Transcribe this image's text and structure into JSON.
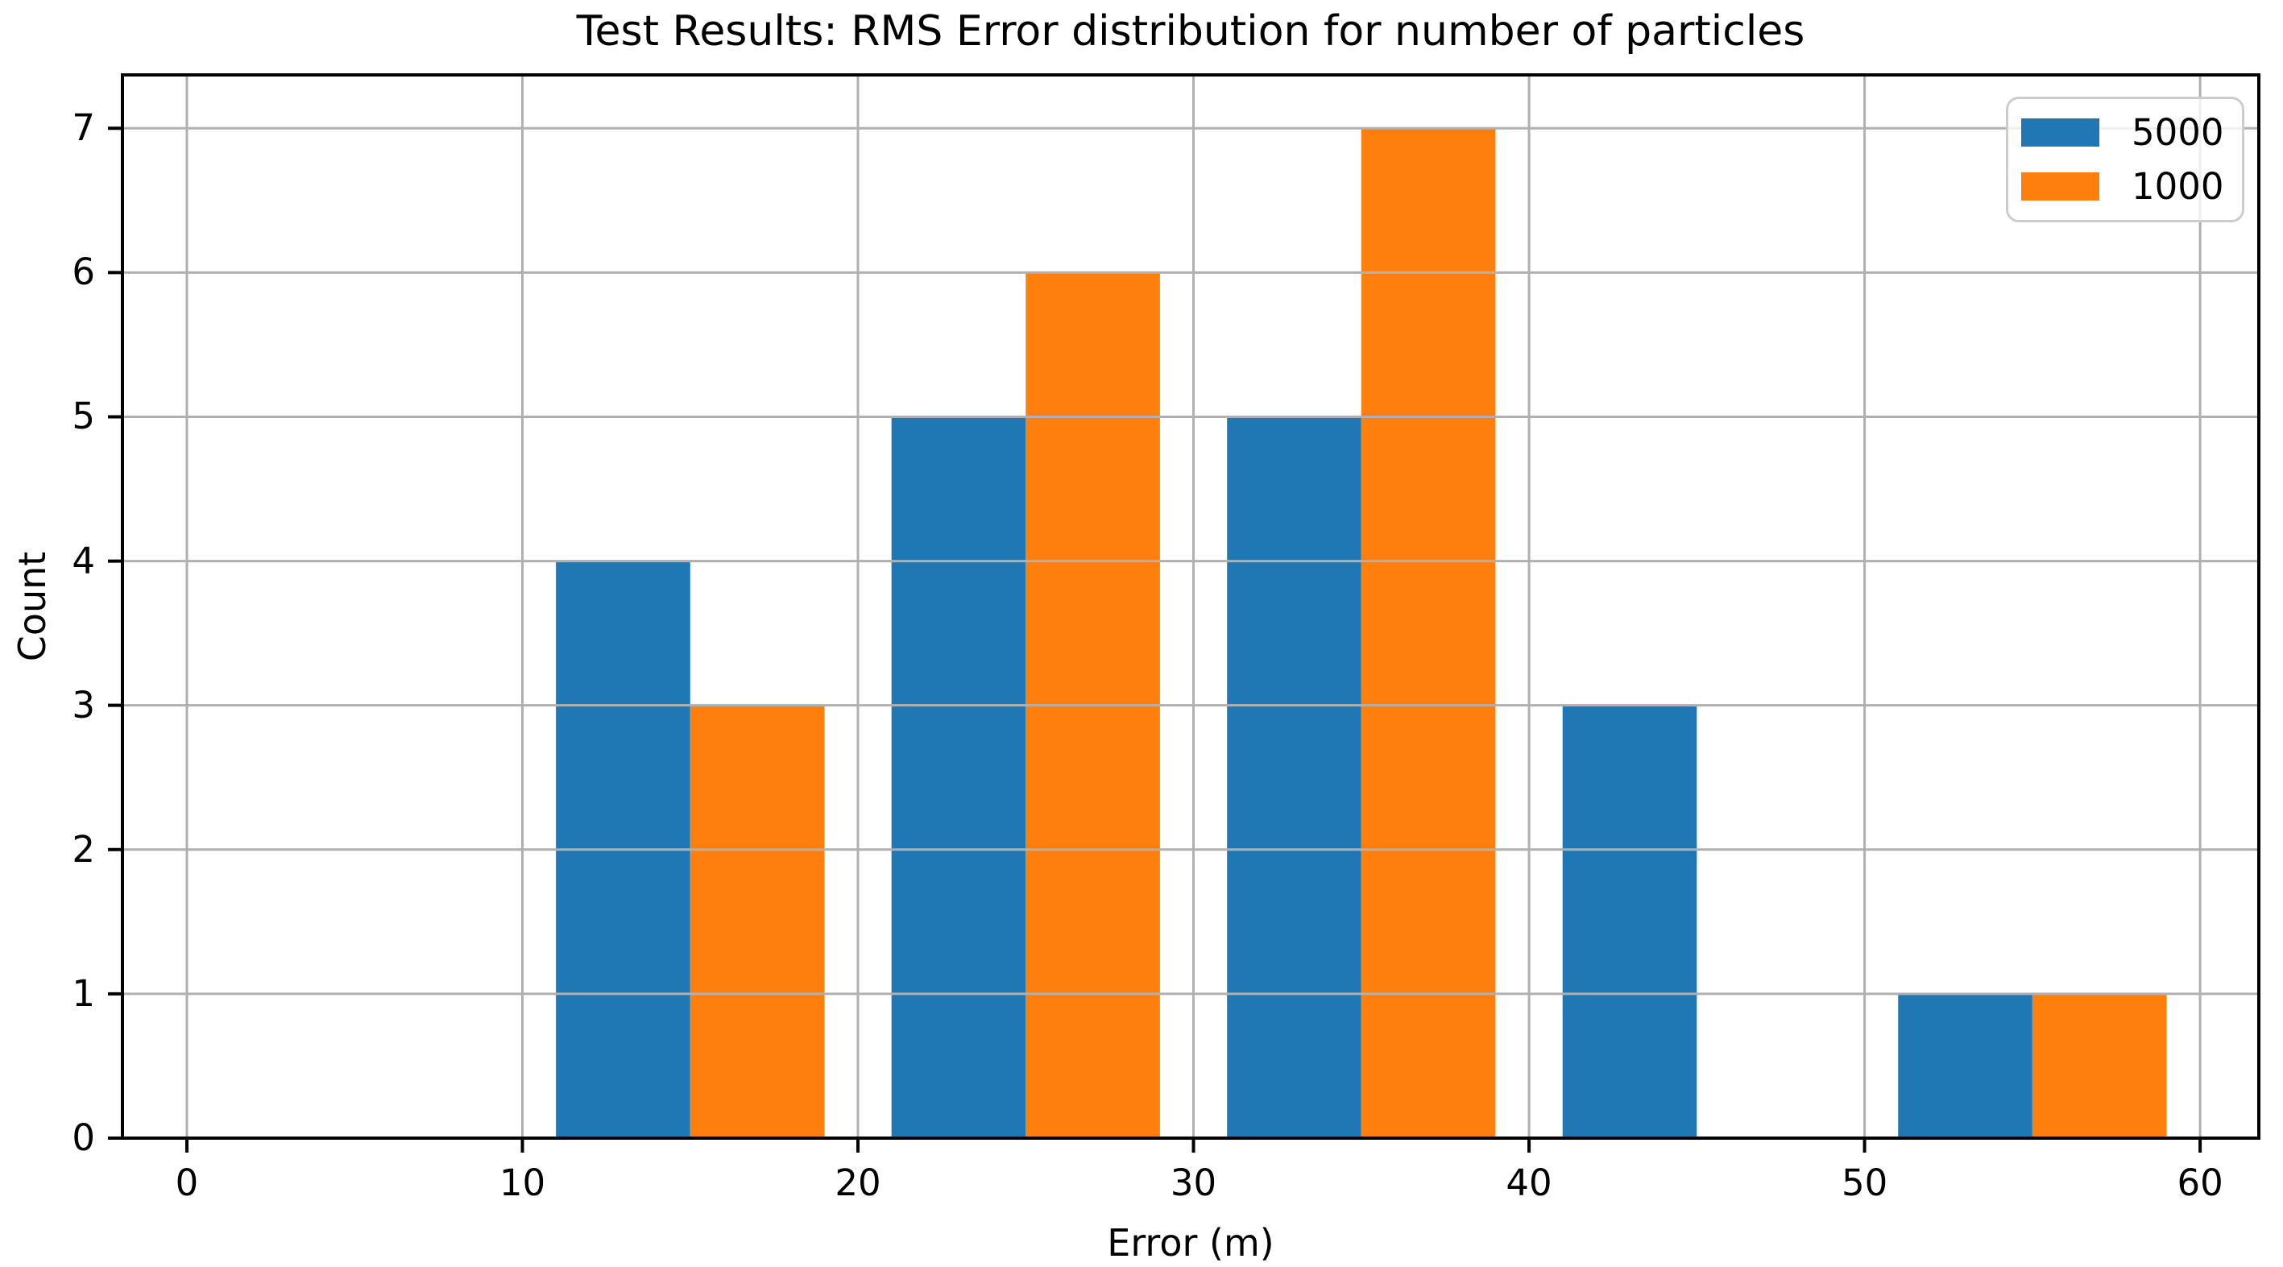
{
  "figure": {
    "background": "#ffffff"
  },
  "chart_data": {
    "type": "bar",
    "subtype": "grouped-histogram",
    "title": "Test Results: RMS Error distribution for number of particles",
    "xlabel": "Error (m)",
    "ylabel": "Count",
    "xlim": [
      -1.92,
      61.75
    ],
    "ylim": [
      0,
      7.37
    ],
    "xticks": [
      0,
      10,
      20,
      30,
      40,
      50,
      60
    ],
    "yticks": [
      0,
      1,
      2,
      3,
      4,
      5,
      6,
      7
    ],
    "grid": true,
    "grid_over_bars": true,
    "legend_position": "upper right",
    "bin_width": 4,
    "series": [
      {
        "name": "5000",
        "color": "#1f77b4",
        "bars": [
          {
            "x0": 11,
            "x1": 15,
            "count": 4
          },
          {
            "x0": 21,
            "x1": 25,
            "count": 5
          },
          {
            "x0": 31,
            "x1": 35,
            "count": 5
          },
          {
            "x0": 41,
            "x1": 45,
            "count": 3
          },
          {
            "x0": 51,
            "x1": 55,
            "count": 1
          }
        ]
      },
      {
        "name": "1000",
        "color": "#ff7f0e",
        "bars": [
          {
            "x0": 15,
            "x1": 19,
            "count": 3
          },
          {
            "x0": 25,
            "x1": 29,
            "count": 6
          },
          {
            "x0": 35,
            "x1": 39,
            "count": 7
          },
          {
            "x0": 45,
            "x1": 49,
            "count": 0
          },
          {
            "x0": 55,
            "x1": 59,
            "count": 1
          }
        ]
      }
    ]
  },
  "legend": {
    "items": [
      {
        "label": "5000",
        "color": "#1f77b4"
      },
      {
        "label": "1000",
        "color": "#ff7f0e"
      }
    ]
  },
  "colors": {
    "grid": "#b0b0b0",
    "spine": "#000000",
    "text": "#000000",
    "legend_border": "#cccccc"
  }
}
